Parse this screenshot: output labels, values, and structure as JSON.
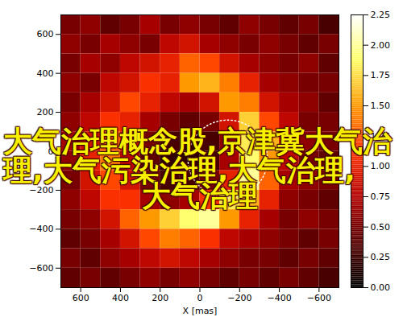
{
  "chart_data": {
    "type": "heatmap",
    "x_label": "X [mas]",
    "xlim": [
      700,
      -700
    ],
    "xticks": [
      600,
      400,
      200,
      0,
      {
        "value": -200,
        "label": "−200"
      },
      {
        "value": -400,
        "label": "−400"
      },
      {
        "value": -600,
        "label": "−600"
      }
    ],
    "ylim": [
      -700,
      700
    ],
    "yticks": [
      600,
      400,
      200,
      0,
      {
        "value": -200,
        "label": "−200"
      },
      {
        "value": -400,
        "label": "−400"
      },
      {
        "value": -600,
        "label": "−600"
      }
    ],
    "x_edges": [
      700,
      600,
      500,
      400,
      300,
      200,
      100,
      0,
      -100,
      -200,
      -300,
      -400,
      -500,
      -600,
      -700
    ],
    "y_edges": [
      700,
      600,
      500,
      400,
      300,
      200,
      100,
      0,
      -100,
      -200,
      -300,
      -400,
      -500,
      -600,
      -700
    ],
    "z": [
      [
        0.5,
        0.6,
        0.4,
        0.5,
        0.7,
        0.5,
        0.6,
        0.5,
        0.4,
        0.6,
        0.5,
        0.4,
        0.5,
        0.3
      ],
      [
        0.6,
        0.5,
        0.7,
        0.6,
        0.5,
        0.8,
        0.9,
        0.7,
        0.6,
        0.5,
        0.6,
        0.5,
        0.4,
        0.5
      ],
      [
        0.5,
        0.7,
        0.6,
        0.8,
        0.9,
        1.0,
        1.3,
        1.2,
        0.9,
        0.7,
        0.6,
        0.5,
        0.6,
        0.4
      ],
      [
        0.6,
        0.5,
        0.8,
        0.9,
        1.1,
        1.0,
        1.5,
        1.6,
        1.4,
        1.0,
        0.7,
        0.6,
        0.5,
        0.5
      ],
      [
        0.5,
        0.7,
        0.9,
        1.2,
        1.0,
        0.8,
        0.7,
        0.9,
        1.5,
        1.4,
        0.9,
        0.7,
        0.6,
        0.4
      ],
      [
        0.6,
        0.8,
        1.1,
        1.0,
        0.7,
        0.5,
        0.4,
        0.5,
        0.9,
        1.7,
        1.2,
        0.8,
        0.5,
        0.5
      ],
      [
        0.7,
        0.9,
        1.3,
        0.9,
        0.5,
        0.3,
        0.2,
        0.3,
        0.6,
        1.8,
        1.6,
        0.9,
        0.6,
        0.5
      ],
      [
        0.6,
        1.0,
        1.4,
        0.8,
        0.4,
        0.2,
        0.2,
        0.3,
        0.7,
        1.9,
        1.5,
        0.8,
        0.5,
        0.4
      ],
      [
        0.5,
        0.9,
        1.2,
        0.9,
        0.5,
        0.3,
        0.3,
        0.5,
        1.0,
        2.0,
        1.3,
        0.7,
        0.6,
        0.5
      ],
      [
        0.6,
        0.8,
        1.1,
        1.1,
        0.7,
        0.6,
        0.7,
        1.1,
        1.8,
        1.6,
        1.0,
        0.6,
        0.5,
        0.4
      ],
      [
        0.5,
        0.6,
        0.9,
        1.3,
        1.5,
        1.7,
        1.9,
        2.0,
        1.5,
        1.0,
        0.7,
        0.5,
        0.6,
        0.5
      ],
      [
        0.4,
        0.5,
        0.7,
        0.9,
        1.2,
        1.4,
        1.3,
        1.1,
        0.8,
        0.7,
        0.6,
        0.5,
        0.4,
        0.5
      ],
      [
        0.5,
        0.4,
        0.6,
        0.7,
        0.8,
        0.9,
        0.8,
        0.7,
        0.6,
        0.5,
        0.5,
        0.4,
        0.5,
        0.4
      ],
      [
        0.4,
        0.5,
        0.4,
        0.5,
        0.6,
        0.5,
        0.6,
        0.5,
        0.4,
        0.5,
        0.4,
        0.5,
        0.4,
        0.3
      ]
    ],
    "colorbar": {
      "range": [
        0,
        2.25
      ],
      "ticks": [
        {
          "value": 0,
          "label": "0.00"
        },
        {
          "value": 0.25,
          "label": "0.25"
        },
        {
          "value": 0.5,
          "label": "0.50"
        },
        {
          "value": 0.75,
          "label": "0.75"
        },
        {
          "value": 1,
          "label": "1.00"
        },
        {
          "value": 1.25,
          "label": "1.25"
        },
        {
          "value": 1.5,
          "label": "1.50"
        },
        {
          "value": 1.75,
          "label": "1.75"
        },
        {
          "value": 2,
          "label": "2.00"
        },
        {
          "value": 2.25,
          "label": "2.25"
        }
      ]
    },
    "annotations": [
      {
        "type": "circle",
        "x": -140,
        "y": -40,
        "r": 200,
        "line_style": "dotted"
      }
    ],
    "overlay_text": [
      "大气治理概念股,京津冀大气治",
      "理,大气污染治理,大气治理,",
      "大气治理"
    ]
  }
}
